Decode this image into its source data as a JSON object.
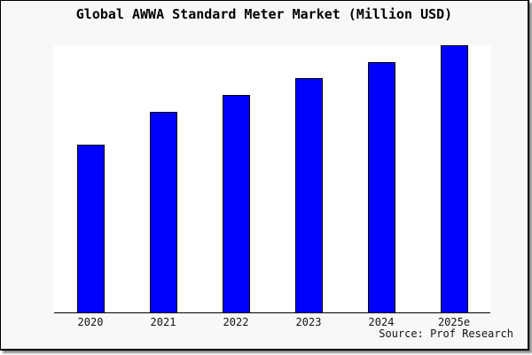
{
  "chart_data": {
    "type": "bar",
    "title": "Global AWWA Standard Meter Market (Million USD)",
    "categories": [
      "2020",
      "2021",
      "2022",
      "2023",
      "2024",
      "2025e"
    ],
    "values": [
      62.7,
      75.2,
      81.5,
      87.7,
      93.6,
      100
    ],
    "units_note": "no y-axis ticks shown; values estimated relative to 2025e = 100",
    "xlabel": "",
    "ylabel": "",
    "ylim": [
      0,
      100
    ],
    "grid": false,
    "legend": false,
    "bar_color": "#0000ff",
    "bar_edge_color": "#000000",
    "plot_bg_color": "#ffffff",
    "page_bg_color": "#f8f8f8",
    "source": "Source: Prof Research"
  }
}
